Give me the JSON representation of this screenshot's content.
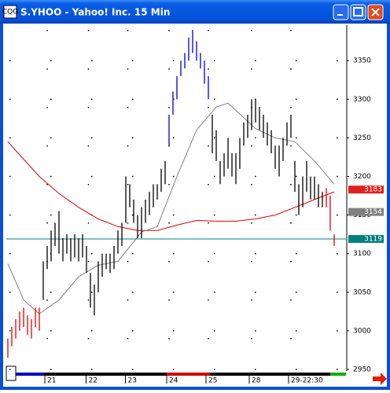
{
  "window": {
    "title": "S.YHOO - Yahoo! Inc. 15 Min"
  },
  "chart_data": {
    "type": "ohlc",
    "xlim": [
      -0.4,
      86
    ],
    "ylim": [
      2950,
      3396
    ],
    "yticks": [
      2950,
      3000,
      3050,
      3100,
      3150,
      3200,
      3250,
      3300,
      3350
    ],
    "xticks": [
      {
        "value": 10,
        "label": "21"
      },
      {
        "value": 20.5,
        "label": "22"
      },
      {
        "value": 30.5,
        "label": "23"
      },
      {
        "value": 41,
        "label": "24"
      },
      {
        "value": 51,
        "label": "25"
      },
      {
        "value": 62,
        "label": "28"
      },
      {
        "value": 72,
        "label": "29-22:30"
      }
    ],
    "grid": true,
    "series": [
      {
        "color": "#e00000",
        "x": [
          0,
          1,
          2,
          3,
          4,
          5,
          6,
          7,
          8
        ],
        "low": [
          2965,
          2980,
          2990,
          3000,
          3005,
          2995,
          2990,
          3005,
          3000
        ],
        "high": [
          2990,
          3005,
          3015,
          3025,
          3030,
          3020,
          3015,
          3030,
          3030
        ]
      },
      {
        "color": "#000000",
        "x": [
          9,
          10,
          11,
          12,
          13,
          14,
          15,
          16,
          17,
          18,
          19,
          20,
          21,
          22,
          23,
          24,
          25,
          26,
          27,
          28,
          29,
          30,
          31,
          32,
          33,
          34,
          35,
          36,
          37,
          38,
          39,
          40
        ],
        "low": [
          3040,
          3080,
          3090,
          3110,
          3100,
          3090,
          3100,
          3090,
          3095,
          3090,
          3095,
          3075,
          3030,
          3020,
          3050,
          3070,
          3080,
          3075,
          3080,
          3100,
          3110,
          3140,
          3160,
          3140,
          3120,
          3120,
          3140,
          3150,
          3160,
          3170,
          3180,
          3190
        ],
        "high": [
          3090,
          3110,
          3130,
          3140,
          3155,
          3120,
          3125,
          3120,
          3125,
          3120,
          3125,
          3110,
          3075,
          3060,
          3090,
          3100,
          3100,
          3100,
          3110,
          3130,
          3140,
          3200,
          3190,
          3170,
          3150,
          3160,
          3170,
          3180,
          3190,
          3190,
          3210,
          3220
        ]
      },
      {
        "color": "#0000d0",
        "x": [
          41,
          42,
          43,
          44,
          45,
          46,
          47,
          48,
          49,
          50,
          51
        ],
        "low": [
          3240,
          3280,
          3300,
          3330,
          3340,
          3350,
          3360,
          3350,
          3340,
          3320,
          3300
        ],
        "high": [
          3280,
          3310,
          3330,
          3350,
          3360,
          3380,
          3390,
          3375,
          3360,
          3350,
          3330
        ]
      },
      {
        "color": "#000000",
        "x": [
          52,
          53,
          54,
          55,
          56,
          57,
          58,
          59,
          60,
          61,
          62,
          63,
          64,
          65,
          66,
          67,
          68,
          69,
          70,
          71,
          72,
          73,
          74,
          75,
          76,
          77,
          78,
          79,
          80
        ],
        "low": [
          3230,
          3220,
          3190,
          3200,
          3210,
          3200,
          3190,
          3210,
          3240,
          3250,
          3260,
          3270,
          3260,
          3250,
          3240,
          3230,
          3210,
          3200,
          3220,
          3240,
          3250,
          3180,
          3150,
          3160,
          3180,
          3170,
          3170,
          3160,
          3160
        ],
        "high": [
          3280,
          3260,
          3220,
          3230,
          3250,
          3230,
          3230,
          3250,
          3270,
          3280,
          3300,
          3300,
          3290,
          3280,
          3270,
          3260,
          3240,
          3240,
          3250,
          3270,
          3280,
          3220,
          3190,
          3200,
          3220,
          3200,
          3200,
          3190,
          3180
        ]
      },
      {
        "color": "#e00000",
        "x": [
          81,
          82,
          83
        ],
        "low": [
          3160,
          3130,
          3110
        ],
        "high": [
          3185,
          3175,
          3125
        ]
      }
    ],
    "lines": [
      {
        "color": "#e00000",
        "x": [
          0,
          3,
          8,
          13,
          18,
          23,
          28,
          33,
          38,
          43,
          48,
          53,
          58,
          63,
          68,
          73,
          78,
          83
        ],
        "values": [
          3245,
          3228,
          3200,
          3178,
          3160,
          3145,
          3135,
          3130,
          3130,
          3137,
          3143,
          3142,
          3142,
          3145,
          3150,
          3160,
          3170,
          3180
        ]
      },
      {
        "color": "#808080",
        "x": [
          0,
          4,
          8,
          13,
          18,
          23,
          28,
          34,
          38,
          43,
          48,
          53,
          56,
          63,
          68,
          73,
          78,
          83
        ],
        "values": [
          3087,
          3040,
          3022,
          3040,
          3070,
          3085,
          3090,
          3128,
          3135,
          3200,
          3260,
          3290,
          3295,
          3262,
          3250,
          3245,
          3220,
          3190
        ]
      }
    ],
    "price_labels": [
      {
        "value": 3183,
        "color": "#e02020",
        "line": false
      },
      {
        "value": 3154,
        "color": "#808080",
        "line": false
      },
      {
        "value": 3119,
        "color": "#008080",
        "line": true
      }
    ]
  }
}
